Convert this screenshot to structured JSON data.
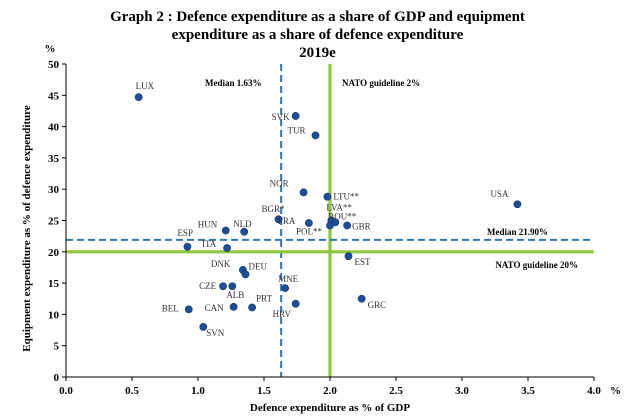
{
  "title_lines": [
    "Graph 2 : Defence expenditure as a share of GDP and equipment",
    "expenditure as a share of defence expenditure",
    "2019e"
  ],
  "chart_data": {
    "type": "scatter",
    "title": "Graph 2 : Defence expenditure as a share of GDP and equipment expenditure as a share of defence expenditure 2019e",
    "xlabel": "Defence expenditure as % of GDP",
    "ylabel": "Equipment expenditure as % of defence expenditure",
    "x_unit": "%",
    "y_unit": "%",
    "xlim": [
      0,
      4
    ],
    "ylim": [
      0,
      50
    ],
    "x_ticks": [
      "0.0",
      "0.5",
      "1.0",
      "1.5",
      "2.0",
      "2.5",
      "3.0",
      "3.5",
      "4.0"
    ],
    "y_ticks": [
      "0",
      "5",
      "10",
      "15",
      "20",
      "25",
      "30",
      "35",
      "40",
      "45",
      "50"
    ],
    "grid": false,
    "marker_color": "#1f4e96",
    "points": [
      {
        "label": "LUX",
        "x": 0.55,
        "y": 44.7
      },
      {
        "label": "SVK",
        "x": 1.74,
        "y": 41.7
      },
      {
        "label": "TUR",
        "x": 1.89,
        "y": 38.6
      },
      {
        "label": "NOR",
        "x": 1.8,
        "y": 29.5
      },
      {
        "label": "LTU**",
        "x": 1.98,
        "y": 28.8
      },
      {
        "label": "USA",
        "x": 3.42,
        "y": 27.6
      },
      {
        "label": "LVA**",
        "x": 2.01,
        "y": 25.0
      },
      {
        "label": "ROU**",
        "x": 2.04,
        "y": 24.7
      },
      {
        "label": "BGR*",
        "x": 1.61,
        "y": 25.2
      },
      {
        "label": "FRA",
        "x": 1.84,
        "y": 24.6
      },
      {
        "label": "POL**",
        "x": 2.0,
        "y": 24.2
      },
      {
        "label": "GBR",
        "x": 2.13,
        "y": 24.2
      },
      {
        "label": "NLD",
        "x": 1.35,
        "y": 23.2
      },
      {
        "label": "HUN",
        "x": 1.21,
        "y": 23.4
      },
      {
        "label": "ESP",
        "x": 0.92,
        "y": 20.8
      },
      {
        "label": "ITA",
        "x": 1.22,
        "y": 20.6
      },
      {
        "label": "EST",
        "x": 2.14,
        "y": 19.3
      },
      {
        "label": "DNK",
        "x": 1.34,
        "y": 17.1
      },
      {
        "label": "DEU",
        "x": 1.36,
        "y": 16.4
      },
      {
        "label": "CZE",
        "x": 1.19,
        "y": 14.5
      },
      {
        "label": "ALB",
        "x": 1.26,
        "y": 14.5
      },
      {
        "label": "MNE",
        "x": 1.66,
        "y": 14.2
      },
      {
        "label": "GRC",
        "x": 2.24,
        "y": 12.5
      },
      {
        "label": "PRT",
        "x": 1.41,
        "y": 11.1
      },
      {
        "label": "HRV",
        "x": 1.74,
        "y": 11.7
      },
      {
        "label": "CAN",
        "x": 1.27,
        "y": 11.2
      },
      {
        "label": "BEL",
        "x": 0.93,
        "y": 10.8
      },
      {
        "label": "SVN",
        "x": 1.04,
        "y": 8.0
      }
    ],
    "reference_lines": [
      {
        "axis": "x",
        "value": 1.63,
        "label": "Median 1.63%",
        "style": "dashed",
        "color": "#2e75b6"
      },
      {
        "axis": "x",
        "value": 2.0,
        "label": "NATO guideline 2%",
        "style": "solid",
        "color": "#8dc63f"
      },
      {
        "axis": "y",
        "value": 21.9,
        "label": "Median 21.90%",
        "style": "dashed",
        "color": "#2e75b6"
      },
      {
        "axis": "y",
        "value": 20,
        "label": "NATO guideline 20%",
        "style": "solid",
        "color": "#8dc63f"
      }
    ]
  }
}
